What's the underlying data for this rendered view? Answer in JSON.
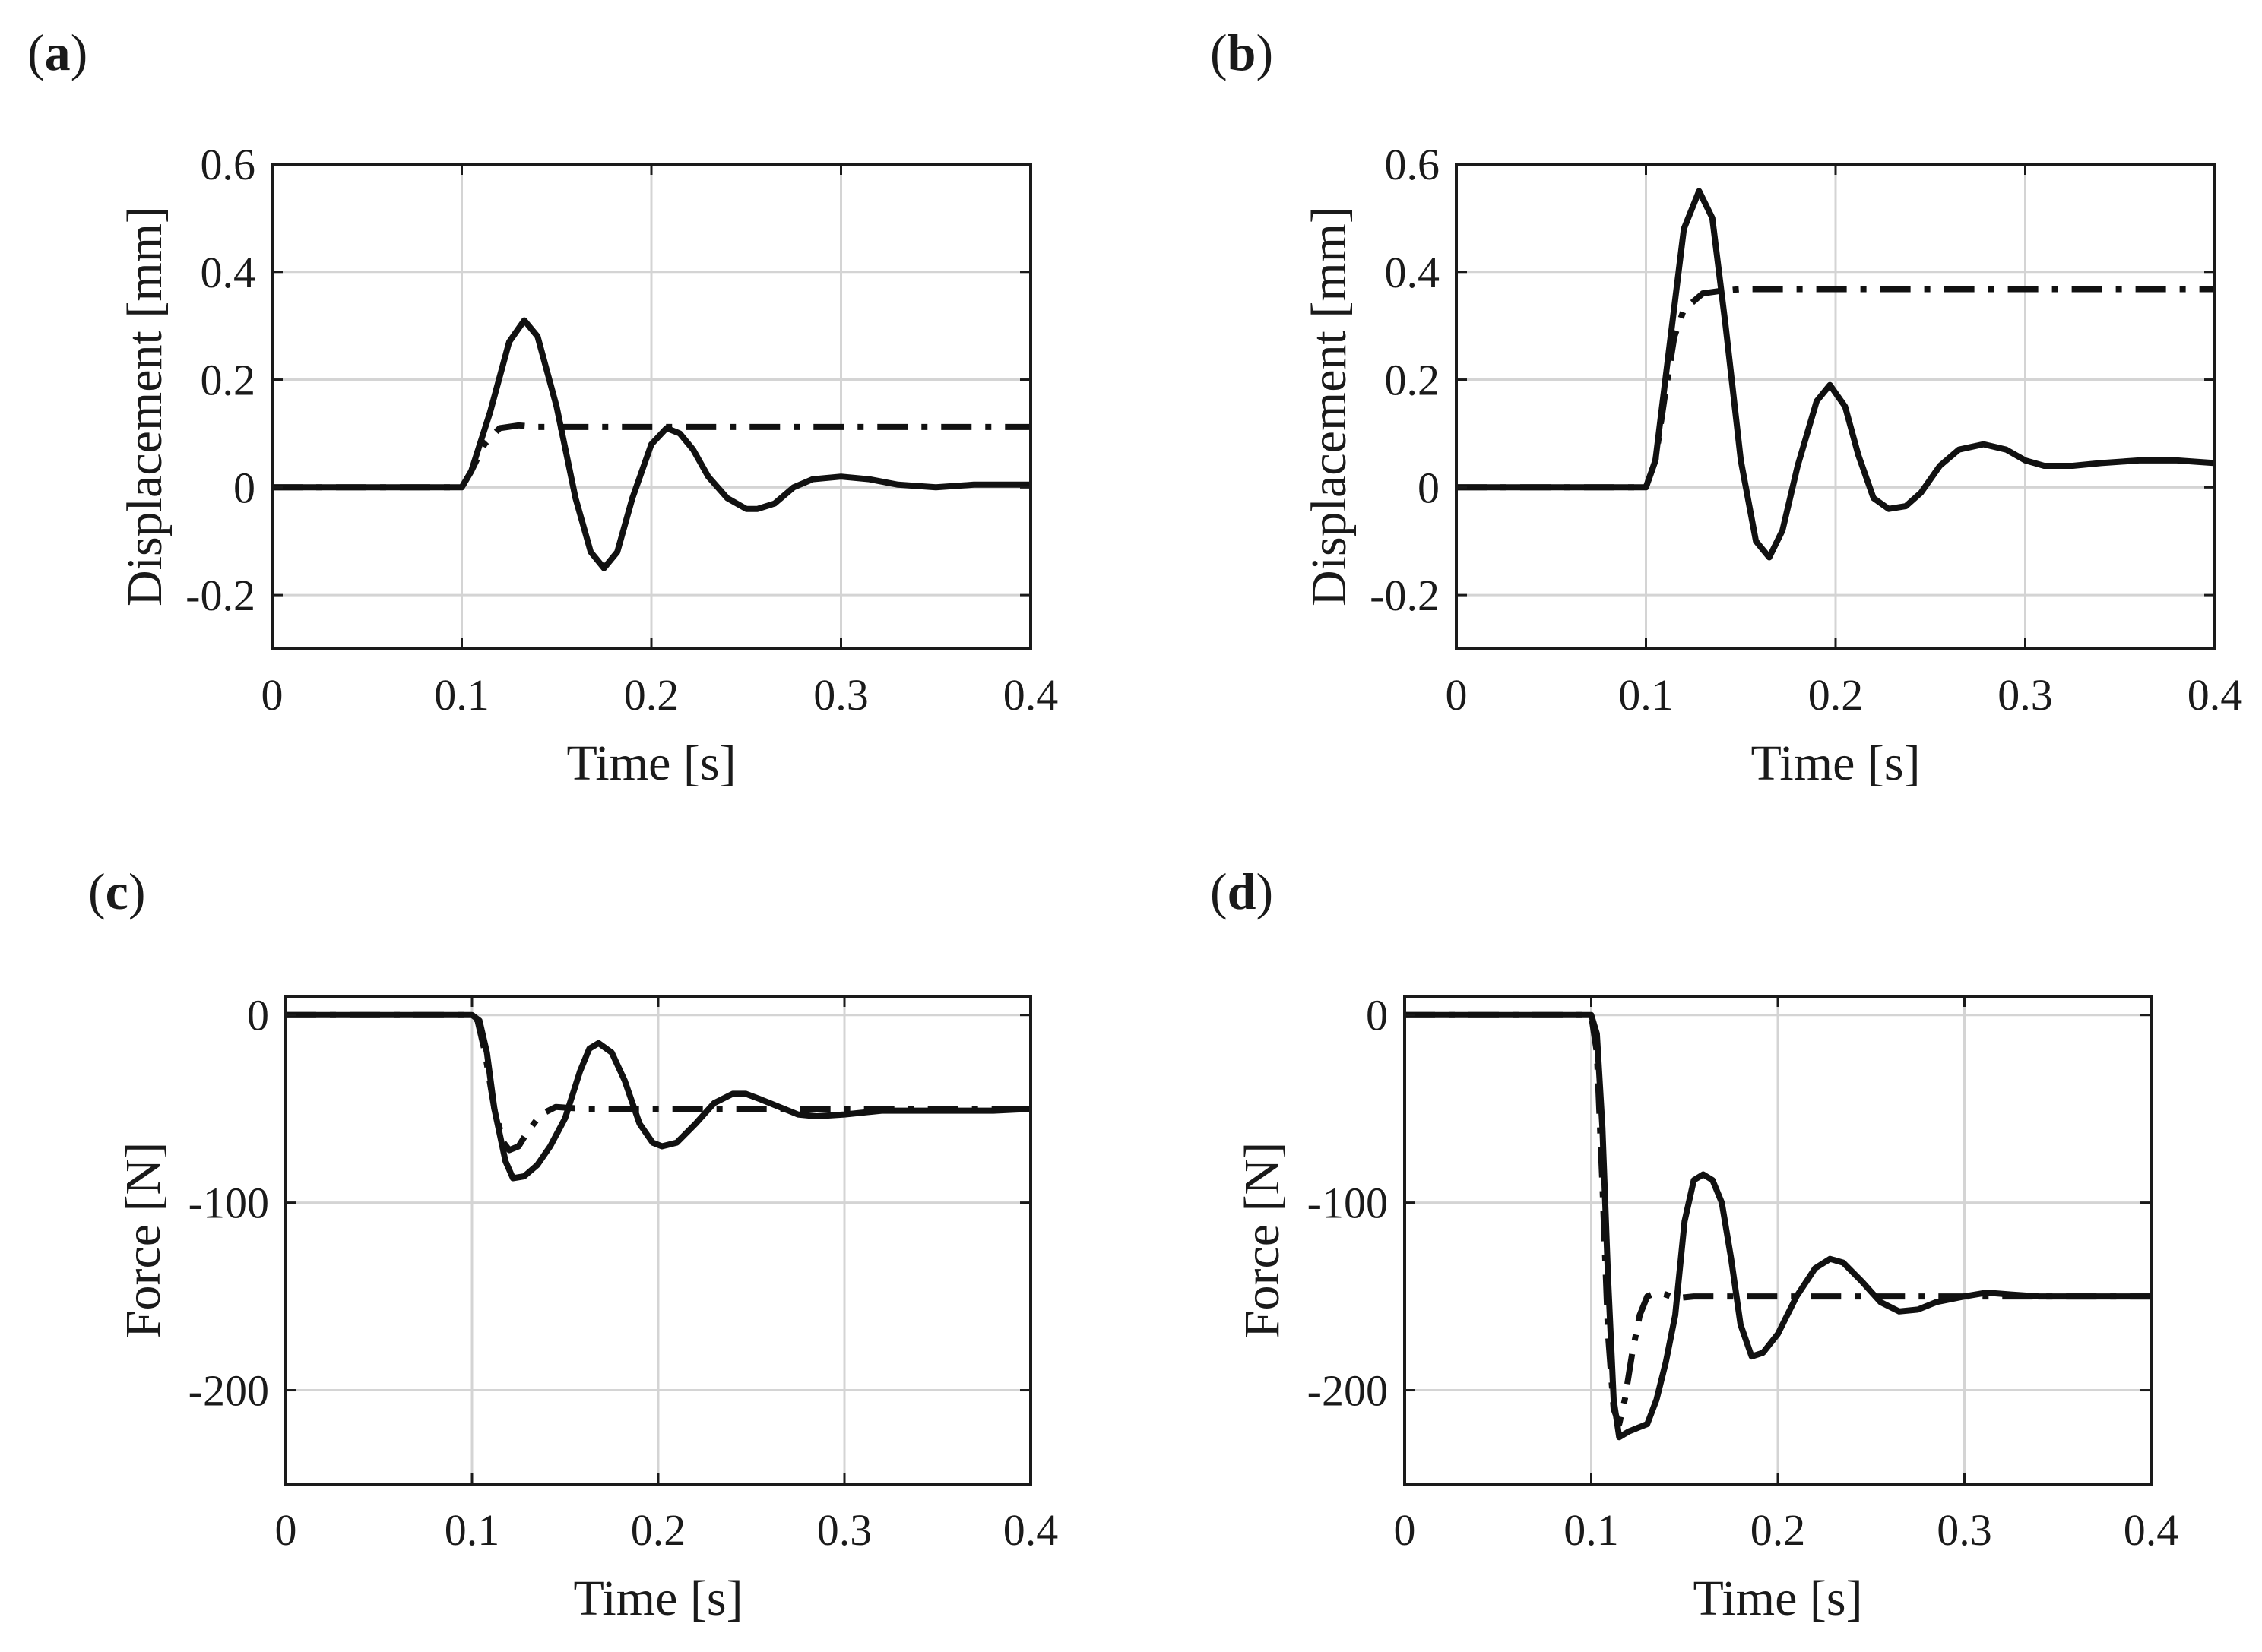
{
  "chart_data": [
    {
      "id": "a",
      "panel_label": {
        "open": "(",
        "letter": "a",
        "close": ")"
      },
      "type": "line",
      "xlabel": "Time [s]",
      "ylabel": "Displacement [mm]",
      "xlim": [
        0,
        0.4
      ],
      "ylim": [
        -0.3,
        0.6
      ],
      "xticks": [
        0,
        0.1,
        0.2,
        0.3,
        0.4
      ],
      "xtick_labels": [
        "0",
        "0.1",
        "0.2",
        "0.3",
        "0.4"
      ],
      "yticks": [
        -0.2,
        0,
        0.2,
        0.4,
        0.6
      ],
      "ytick_labels": [
        "-0.2",
        "0",
        "0.2",
        "0.4",
        "0.6"
      ],
      "grid": true,
      "series": [
        {
          "name": "solid",
          "style": "solid",
          "x": [
            0,
            0.1,
            0.105,
            0.115,
            0.125,
            0.133,
            0.14,
            0.15,
            0.16,
            0.168,
            0.175,
            0.182,
            0.19,
            0.2,
            0.208,
            0.215,
            0.222,
            0.23,
            0.24,
            0.25,
            0.256,
            0.265,
            0.275,
            0.285,
            0.3,
            0.315,
            0.33,
            0.35,
            0.37,
            0.4
          ],
          "y": [
            0,
            0,
            0.03,
            0.14,
            0.27,
            0.31,
            0.28,
            0.15,
            -0.02,
            -0.12,
            -0.15,
            -0.12,
            -0.02,
            0.08,
            0.11,
            0.1,
            0.07,
            0.02,
            -0.02,
            -0.04,
            -0.04,
            -0.03,
            0,
            0.015,
            0.02,
            0.015,
            0.005,
            0,
            0.005,
            0.005
          ]
        },
        {
          "name": "dash-dot",
          "style": "dashdot",
          "x": [
            0,
            0.1,
            0.105,
            0.112,
            0.12,
            0.13,
            0.14,
            0.2,
            0.3,
            0.4
          ],
          "y": [
            0,
            0,
            0.03,
            0.08,
            0.11,
            0.115,
            0.112,
            0.112,
            0.112,
            0.112
          ]
        }
      ]
    },
    {
      "id": "b",
      "panel_label": {
        "open": "(",
        "letter": "b",
        "close": ")"
      },
      "type": "line",
      "xlabel": "Time [s]",
      "ylabel": "Displacement [mm]",
      "xlim": [
        0,
        0.4
      ],
      "ylim": [
        -0.3,
        0.6
      ],
      "xticks": [
        0,
        0.1,
        0.2,
        0.3,
        0.4
      ],
      "xtick_labels": [
        "0",
        "0.1",
        "0.2",
        "0.3",
        "0.4"
      ],
      "yticks": [
        -0.2,
        0,
        0.2,
        0.4,
        0.6
      ],
      "ytick_labels": [
        "-0.2",
        "0",
        "0.2",
        "0.4",
        "0.6"
      ],
      "grid": true,
      "series": [
        {
          "name": "solid",
          "style": "solid",
          "x": [
            0,
            0.1,
            0.105,
            0.112,
            0.12,
            0.128,
            0.135,
            0.142,
            0.15,
            0.158,
            0.165,
            0.172,
            0.18,
            0.19,
            0.197,
            0.205,
            0.212,
            0.22,
            0.228,
            0.237,
            0.245,
            0.255,
            0.265,
            0.278,
            0.29,
            0.3,
            0.31,
            0.325,
            0.34,
            0.36,
            0.38,
            0.4
          ],
          "y": [
            0,
            0,
            0.05,
            0.25,
            0.48,
            0.55,
            0.5,
            0.3,
            0.05,
            -0.1,
            -0.13,
            -0.08,
            0.04,
            0.16,
            0.19,
            0.15,
            0.06,
            -0.02,
            -0.04,
            -0.035,
            -0.01,
            0.04,
            0.07,
            0.08,
            0.07,
            0.05,
            0.04,
            0.04,
            0.045,
            0.05,
            0.05,
            0.045
          ]
        },
        {
          "name": "dash-dot",
          "style": "dashdot",
          "x": [
            0,
            0.1,
            0.105,
            0.11,
            0.115,
            0.12,
            0.13,
            0.14,
            0.15,
            0.2,
            0.3,
            0.4
          ],
          "y": [
            0,
            0,
            0.05,
            0.17,
            0.28,
            0.33,
            0.36,
            0.365,
            0.368,
            0.368,
            0.368,
            0.368
          ]
        }
      ]
    },
    {
      "id": "c",
      "panel_label": {
        "open": "(",
        "letter": "c",
        "close": ")"
      },
      "type": "line",
      "xlabel": "Time [s]",
      "ylabel": "Force [N]",
      "xlim": [
        0,
        0.4
      ],
      "ylim": [
        -250,
        10
      ],
      "xticks": [
        0,
        0.1,
        0.2,
        0.3,
        0.4
      ],
      "xtick_labels": [
        "0",
        "0.1",
        "0.2",
        "0.3",
        "0.4"
      ],
      "yticks": [
        -200,
        -100,
        0
      ],
      "ytick_labels": [
        "-200",
        "-100",
        "0"
      ],
      "grid": true,
      "series": [
        {
          "name": "solid",
          "style": "solid",
          "x": [
            0,
            0.1,
            0.104,
            0.108,
            0.112,
            0.118,
            0.122,
            0.128,
            0.135,
            0.142,
            0.15,
            0.158,
            0.163,
            0.168,
            0.175,
            0.182,
            0.19,
            0.197,
            0.202,
            0.21,
            0.22,
            0.23,
            0.24,
            0.247,
            0.255,
            0.265,
            0.275,
            0.285,
            0.3,
            0.32,
            0.34,
            0.36,
            0.38,
            0.4
          ],
          "y": [
            0,
            0,
            -3,
            -20,
            -50,
            -78,
            -87,
            -86,
            -80,
            -70,
            -55,
            -30,
            -18,
            -15,
            -20,
            -35,
            -58,
            -68,
            -70,
            -68,
            -58,
            -47,
            -42,
            -42,
            -45,
            -49,
            -53,
            -54,
            -53,
            -51,
            -51,
            -51,
            -51,
            -50
          ]
        },
        {
          "name": "dash-dot",
          "style": "dashdot",
          "x": [
            0,
            0.1,
            0.103,
            0.107,
            0.112,
            0.117,
            0.12,
            0.125,
            0.13,
            0.137,
            0.145,
            0.16,
            0.2,
            0.3,
            0.4
          ],
          "y": [
            0,
            0,
            -3,
            -20,
            -50,
            -68,
            -72,
            -70,
            -62,
            -53,
            -49,
            -50,
            -50,
            -50,
            -50
          ]
        }
      ]
    },
    {
      "id": "d",
      "panel_label": {
        "open": "(",
        "letter": "d",
        "close": ")"
      },
      "type": "line",
      "xlabel": "Time [s]",
      "ylabel": "Force [N]",
      "xlim": [
        0,
        0.4
      ],
      "ylim": [
        -250,
        10
      ],
      "xticks": [
        0,
        0.1,
        0.2,
        0.3,
        0.4
      ],
      "xtick_labels": [
        "0",
        "0.1",
        "0.2",
        "0.3",
        "0.4"
      ],
      "yticks": [
        -200,
        -100,
        0
      ],
      "ytick_labels": [
        "-200",
        "-100",
        "0"
      ],
      "grid": true,
      "series": [
        {
          "name": "solid",
          "style": "solid",
          "x": [
            0,
            0.1,
            0.103,
            0.106,
            0.109,
            0.112,
            0.115,
            0.12,
            0.125,
            0.13,
            0.135,
            0.14,
            0.145,
            0.15,
            0.155,
            0.16,
            0.165,
            0.17,
            0.175,
            0.18,
            0.186,
            0.192,
            0.2,
            0.21,
            0.22,
            0.228,
            0.235,
            0.245,
            0.255,
            0.265,
            0.275,
            0.285,
            0.3,
            0.312,
            0.325,
            0.34,
            0.36,
            0.38,
            0.4
          ],
          "y": [
            0,
            0,
            -10,
            -60,
            -140,
            -205,
            -225,
            -222,
            -220,
            -218,
            -205,
            -185,
            -160,
            -110,
            -88,
            -85,
            -88,
            -100,
            -130,
            -165,
            -182,
            -180,
            -170,
            -150,
            -135,
            -130,
            -132,
            -142,
            -153,
            -158,
            -157,
            -153,
            -150,
            -148,
            -149,
            -150,
            -150,
            -150,
            -150
          ]
        },
        {
          "name": "dash-dot",
          "style": "dashdot",
          "x": [
            0,
            0.1,
            0.103,
            0.106,
            0.109,
            0.112,
            0.115,
            0.118,
            0.122,
            0.126,
            0.13,
            0.135,
            0.14,
            0.145,
            0.155,
            0.2,
            0.3,
            0.4
          ],
          "y": [
            0,
            0,
            -20,
            -90,
            -170,
            -210,
            -218,
            -205,
            -180,
            -160,
            -150,
            -148,
            -149,
            -151,
            -150,
            -150,
            -150,
            -150
          ]
        }
      ]
    }
  ]
}
